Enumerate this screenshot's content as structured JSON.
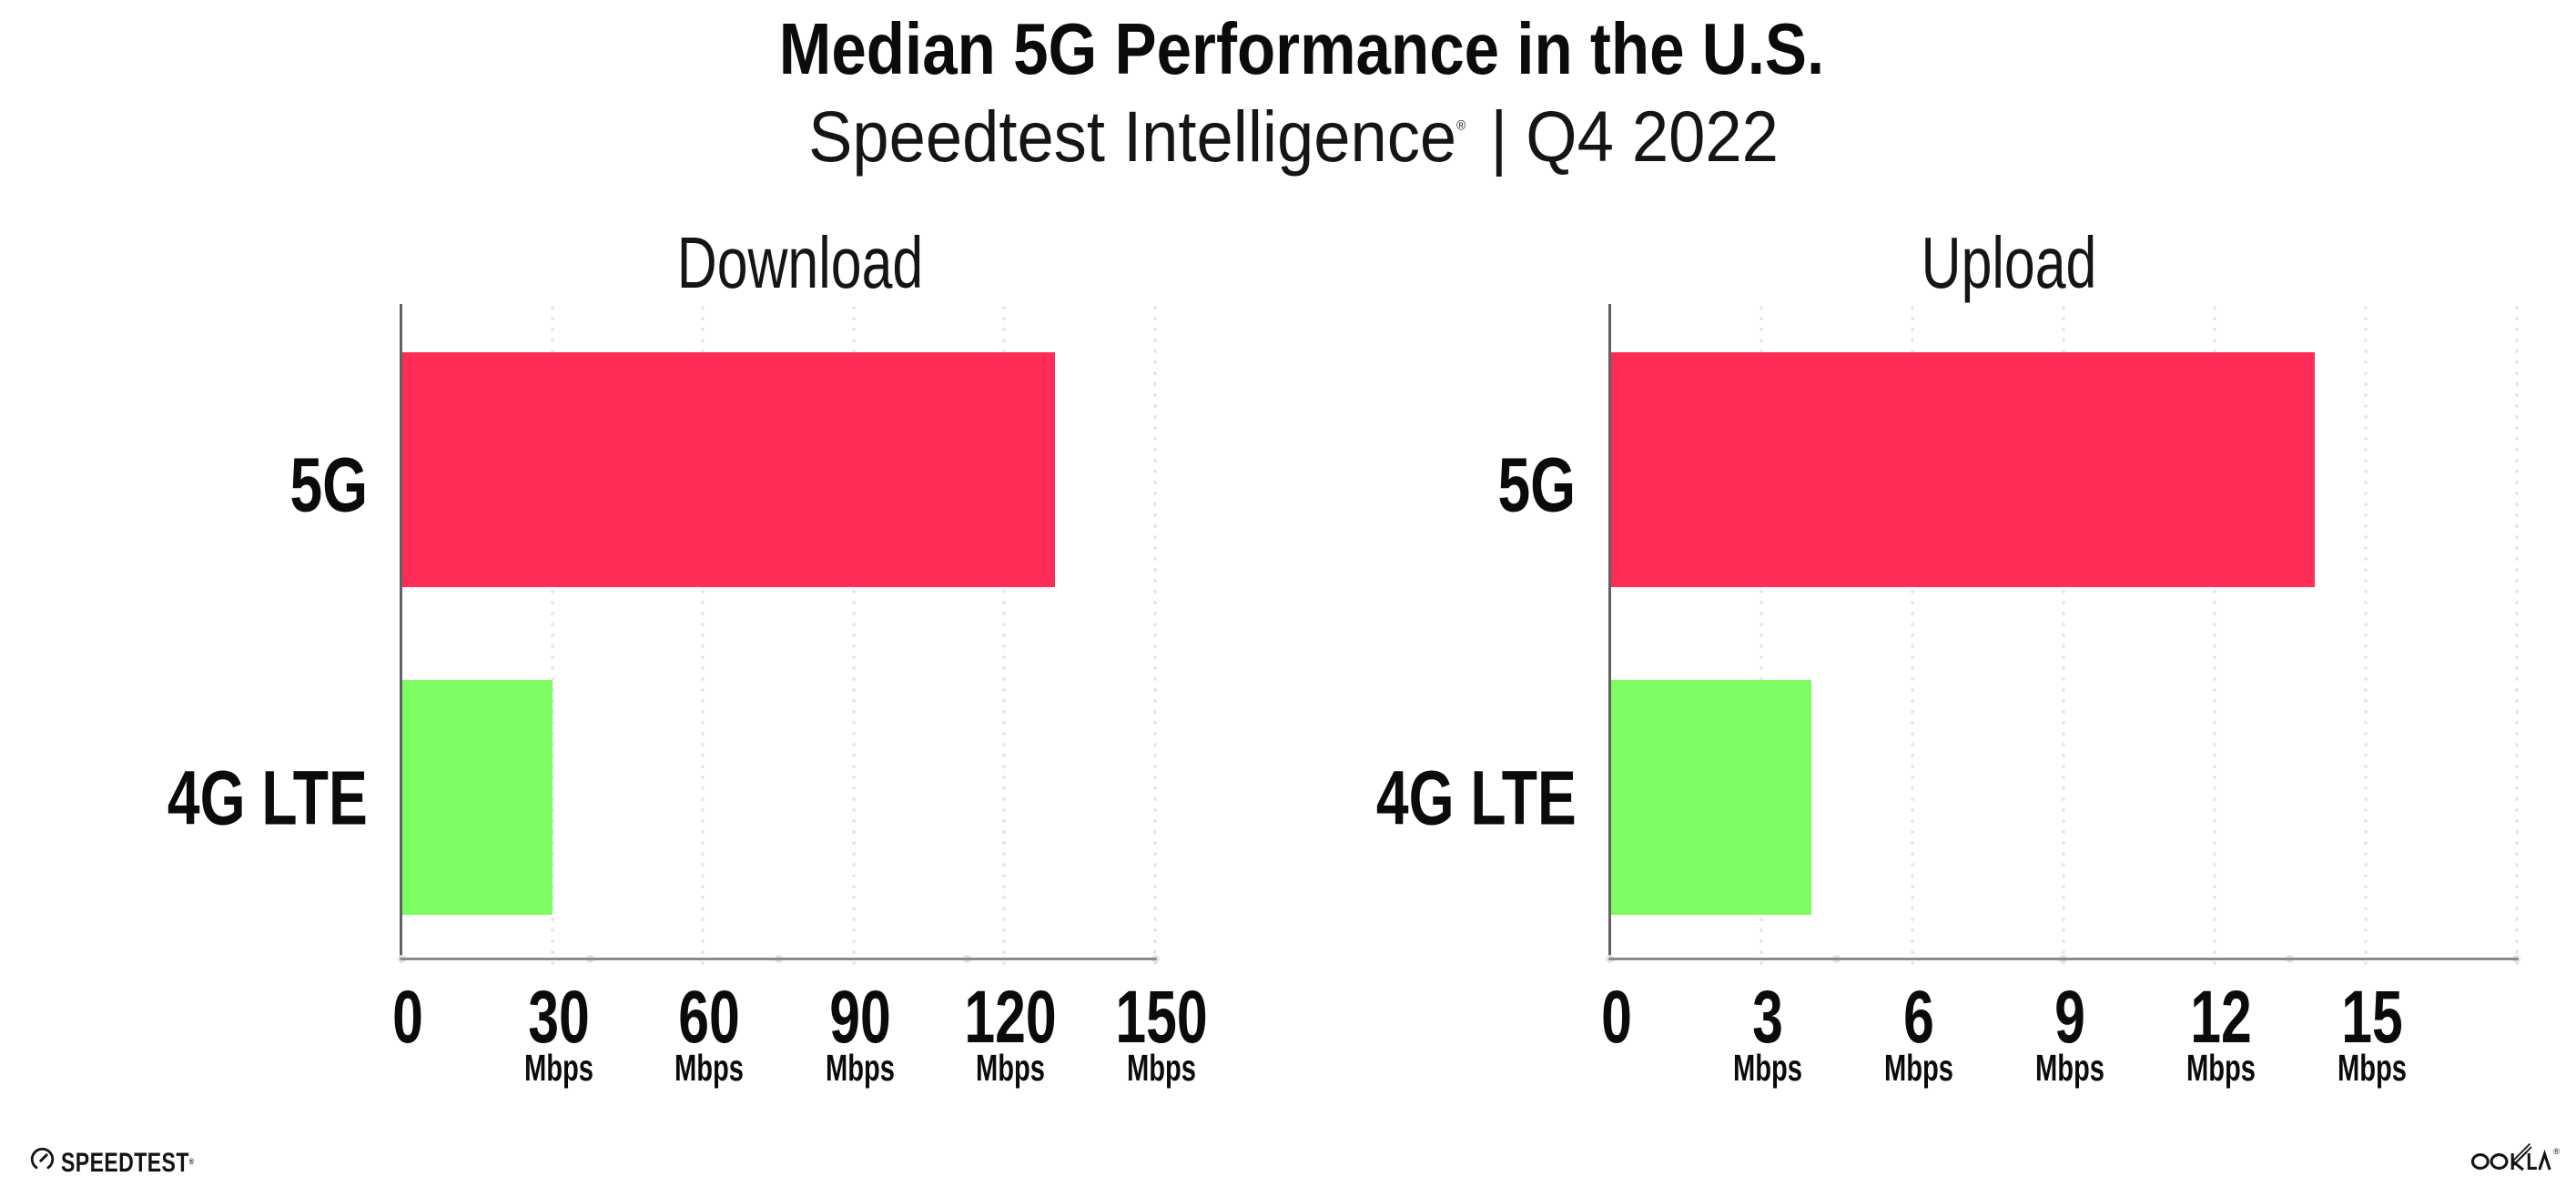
{
  "title": "Median 5G Performance in the U.S.",
  "subtitle": {
    "product": "Speedtest Intelligence",
    "registered_mark": "®",
    "separator": "|",
    "period": "Q4 2022"
  },
  "footer": {
    "speedtest_logo_text": "SPEEDTEST",
    "speedtest_registered_mark": "®",
    "ookla_logo_text": "OOKLA",
    "ookla_registered_mark": "®"
  },
  "colors": {
    "bar_5g": "#FD2D57",
    "bar_4g_lte": "#7EFD63",
    "gridline_dots": "#dfe3f0",
    "y_axis_line": "#616161",
    "x_axis_line": "#8b8b8b",
    "text": "#0b0b0b"
  },
  "chart_data": [
    {
      "type": "bar",
      "orientation": "horizontal",
      "title": "Download",
      "categories": [
        "5G",
        "4G LTE"
      ],
      "values": [
        130,
        30
      ],
      "unit": "Mbps",
      "xlim": [
        0,
        150
      ],
      "xticks": [
        0,
        30,
        60,
        90,
        120,
        150
      ],
      "gridline_interval": 30,
      "grid": "dotted-vertical",
      "bar_colors": [
        "#FD2D57",
        "#7EFD63"
      ],
      "legend": "none"
    },
    {
      "type": "bar",
      "orientation": "horizontal",
      "title": "Upload",
      "categories": [
        "5G",
        "4G LTE"
      ],
      "values": [
        14,
        4
      ],
      "unit": "Mbps",
      "xlim": [
        0,
        18
      ],
      "xticks": [
        0,
        3,
        6,
        9,
        12,
        15
      ],
      "gridline_interval": 3,
      "grid": "dotted-vertical",
      "bar_colors": [
        "#FD2D57",
        "#7EFD63"
      ],
      "legend": "none"
    }
  ]
}
